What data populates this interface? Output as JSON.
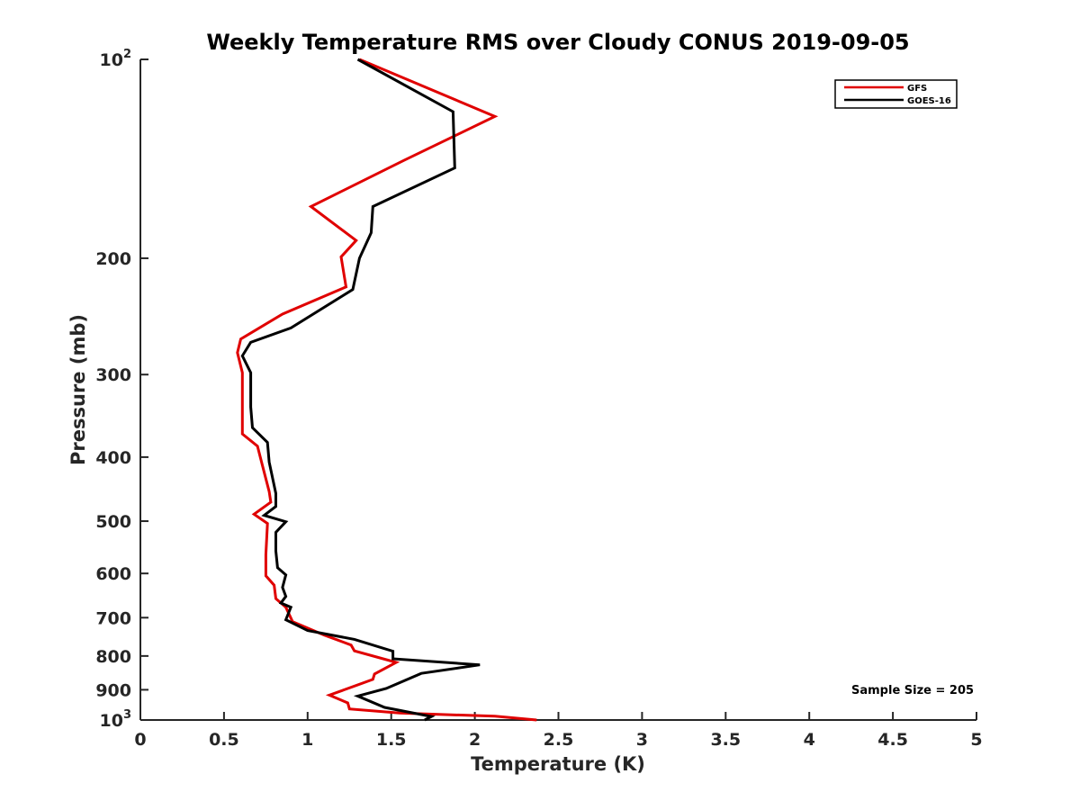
{
  "chart_data": {
    "type": "line",
    "title": "Weekly Temperature RMS over Cloudy CONUS 2019-09-05",
    "xlabel": "Temperature (K)",
    "ylabel": "Pressure (mb)",
    "xlim": [
      0,
      5
    ],
    "ylim": [
      100,
      1000
    ],
    "y_scale": "log",
    "y_reversed": true,
    "x_ticks": [
      "0",
      "0.5",
      "1",
      "1.5",
      "2",
      "2.5",
      "3",
      "3.5",
      "4",
      "4.5",
      "5"
    ],
    "y_ticks": [
      {
        "value": 100,
        "label": "10",
        "exp": "2"
      },
      {
        "value": 200,
        "label": "200"
      },
      {
        "value": 300,
        "label": "300"
      },
      {
        "value": 400,
        "label": "400"
      },
      {
        "value": 500,
        "label": "500"
      },
      {
        "value": 600,
        "label": "600"
      },
      {
        "value": 700,
        "label": "700"
      },
      {
        "value": 800,
        "label": "800"
      },
      {
        "value": 900,
        "label": "900"
      },
      {
        "value": 1000,
        "label": "10",
        "exp": "3"
      }
    ],
    "grid": false,
    "legend_position": "top-right",
    "series": [
      {
        "name": "GFS",
        "color": "#e00000",
        "points": [
          [
            1.31,
            100
          ],
          [
            2.12,
            122
          ],
          [
            1.58,
            142
          ],
          [
            1.02,
            167
          ],
          [
            1.29,
            188
          ],
          [
            1.2,
            199
          ],
          [
            1.23,
            221
          ],
          [
            0.85,
            243
          ],
          [
            0.6,
            265
          ],
          [
            0.58,
            278
          ],
          [
            0.61,
            298
          ],
          [
            0.61,
            332
          ],
          [
            0.61,
            369
          ],
          [
            0.7,
            385
          ],
          [
            0.73,
            412
          ],
          [
            0.77,
            451
          ],
          [
            0.78,
            468
          ],
          [
            0.68,
            488
          ],
          [
            0.76,
            504
          ],
          [
            0.75,
            562
          ],
          [
            0.75,
            605
          ],
          [
            0.8,
            625
          ],
          [
            0.81,
            655
          ],
          [
            0.87,
            675
          ],
          [
            0.91,
            710
          ],
          [
            1.1,
            744
          ],
          [
            1.26,
            770
          ],
          [
            1.28,
            786
          ],
          [
            1.53,
            818
          ],
          [
            1.4,
            852
          ],
          [
            1.39,
            868
          ],
          [
            1.13,
            917
          ],
          [
            1.24,
            942
          ],
          [
            1.25,
            962
          ],
          [
            1.55,
            976
          ],
          [
            2.12,
            987
          ],
          [
            2.37,
            1000
          ]
        ]
      },
      {
        "name": "GOES-16",
        "color": "#000000",
        "points": [
          [
            1.3,
            100
          ],
          [
            1.87,
            120
          ],
          [
            1.88,
            146
          ],
          [
            1.39,
            167
          ],
          [
            1.38,
            183
          ],
          [
            1.31,
            200
          ],
          [
            1.27,
            223
          ],
          [
            0.9,
            255
          ],
          [
            0.66,
            268
          ],
          [
            0.61,
            281
          ],
          [
            0.66,
            298
          ],
          [
            0.66,
            336
          ],
          [
            0.67,
            361
          ],
          [
            0.76,
            380
          ],
          [
            0.77,
            407
          ],
          [
            0.81,
            454
          ],
          [
            0.81,
            475
          ],
          [
            0.74,
            490
          ],
          [
            0.87,
            501
          ],
          [
            0.81,
            520
          ],
          [
            0.81,
            555
          ],
          [
            0.82,
            588
          ],
          [
            0.87,
            603
          ],
          [
            0.85,
            630
          ],
          [
            0.87,
            650
          ],
          [
            0.84,
            665
          ],
          [
            0.9,
            675
          ],
          [
            0.87,
            705
          ],
          [
            1.0,
            732
          ],
          [
            1.28,
            755
          ],
          [
            1.51,
            787
          ],
          [
            1.51,
            808
          ],
          [
            2.03,
            825
          ],
          [
            1.68,
            850
          ],
          [
            1.47,
            896
          ],
          [
            1.3,
            920
          ],
          [
            1.46,
            957
          ],
          [
            1.74,
            988
          ],
          [
            1.7,
            1000
          ]
        ]
      }
    ],
    "annotations": [
      {
        "text": "Sample Size = 205"
      }
    ]
  }
}
